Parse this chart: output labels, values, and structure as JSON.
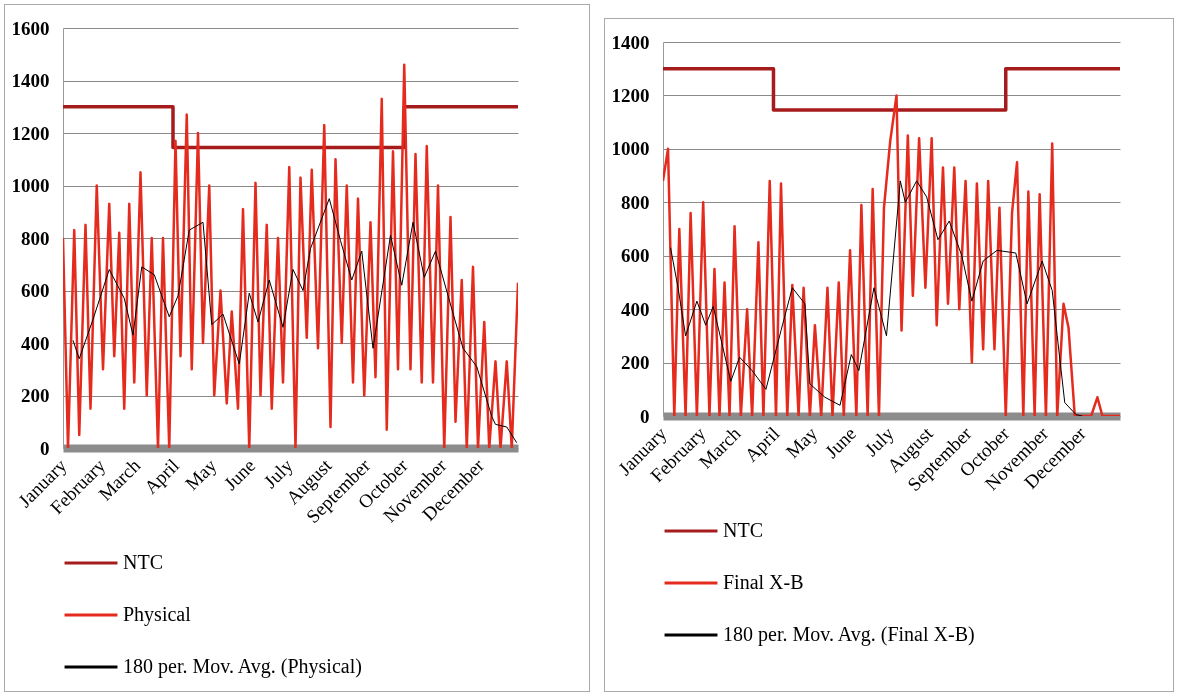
{
  "chart_data": [
    {
      "type": "line",
      "x": [
        "--01-01",
        "--01-05",
        "--01-10",
        "--01-14",
        "--01-19",
        "--01-23",
        "--01-28",
        "--02-02",
        "--02-07",
        "--02-11",
        "--02-15",
        "--02-19",
        "--02-23",
        "--02-27",
        "--03-04",
        "--03-09",
        "--03-13",
        "--03-18",
        "--03-22",
        "--03-27",
        "--04-01",
        "--04-05",
        "--04-10",
        "--04-14",
        "--04-19",
        "--04-23",
        "--04-28",
        "--05-02",
        "--05-07",
        "--05-12",
        "--05-16",
        "--05-21",
        "--05-25",
        "--05-30",
        "--06-04",
        "--06-08",
        "--06-13",
        "--06-17",
        "--06-22",
        "--06-26",
        "--07-01",
        "--07-06",
        "--07-10",
        "--07-15",
        "--07-19",
        "--07-24",
        "--07-29",
        "--08-03",
        "--08-07",
        "--08-12",
        "--08-16",
        "--08-21",
        "--08-25",
        "--08-30",
        "--09-04",
        "--09-08",
        "--09-13",
        "--09-17",
        "--09-22",
        "--09-26",
        "--10-01",
        "--10-06",
        "--10-10",
        "--10-15",
        "--10-19",
        "--10-24",
        "--10-28",
        "--11-02",
        "--11-07",
        "--11-11",
        "--11-16",
        "--11-20",
        "--11-25",
        "--11-29",
        "--12-04",
        "--12-08",
        "--12-13",
        "--12-17",
        "--12-22",
        "--12-26",
        "--12-31"
      ],
      "xlim": [
        "--01-01",
        "--12-31"
      ],
      "xticks": [
        {
          "value": "--01-01",
          "label": "January"
        },
        {
          "value": "--02-01",
          "label": "February"
        },
        {
          "value": "--03-01",
          "label": "March"
        },
        {
          "value": "--04-01",
          "label": "April"
        },
        {
          "value": "--05-01",
          "label": "May"
        },
        {
          "value": "--06-01",
          "label": "June"
        },
        {
          "value": "--07-01",
          "label": "July"
        },
        {
          "value": "--08-01",
          "label": "August"
        },
        {
          "value": "--09-01",
          "label": "September"
        },
        {
          "value": "--10-01",
          "label": "October"
        },
        {
          "value": "--11-01",
          "label": "November"
        },
        {
          "value": "--12-01",
          "label": "December"
        }
      ],
      "ylim": [
        0,
        1600
      ],
      "yticks": [
        0,
        200,
        400,
        600,
        800,
        1000,
        1200,
        1400,
        1600
      ],
      "grid": "y",
      "legend": "bottom",
      "marker": "none",
      "series": [
        {
          "name": "NTC",
          "type": "step",
          "color": "#a61c1c",
          "x": [
            "--01-01",
            "--03-30",
            "--10-01",
            "--12-31"
          ],
          "values": [
            1300,
            1145,
            1300,
            1300
          ]
        },
        {
          "name": "Physical",
          "color": "#e52b1e",
          "values": [
            800,
            0,
            830,
            50,
            850,
            150,
            1000,
            300,
            930,
            350,
            820,
            150,
            930,
            250,
            1050,
            200,
            800,
            0,
            800,
            0,
            1170,
            350,
            1270,
            300,
            1200,
            400,
            1000,
            200,
            600,
            170,
            520,
            150,
            910,
            0,
            1010,
            200,
            850,
            150,
            800,
            250,
            1070,
            0,
            1030,
            420,
            1060,
            380,
            1230,
            80,
            1100,
            400,
            1000,
            250,
            950,
            200,
            860,
            270,
            1330,
            70,
            1130,
            300,
            1460,
            300,
            1120,
            250,
            1150,
            250,
            1000,
            0,
            880,
            100,
            640,
            0,
            690,
            0,
            480,
            0,
            330,
            0,
            330,
            0,
            630
          ]
        },
        {
          "name": "180 per. Mov. Avg. (Physical)",
          "color": "#000000",
          "x": [
            "--01-09",
            "--01-14",
            "--01-25",
            "--02-07",
            "--02-19",
            "--02-26",
            "--03-05",
            "--03-15",
            "--03-27",
            "--04-03",
            "--04-12",
            "--04-23",
            "--04-30",
            "--05-09",
            "--05-22",
            "--05-30",
            "--06-06",
            "--06-15",
            "--06-26",
            "--07-04",
            "--07-12",
            "--07-18",
            "--08-02",
            "--08-11",
            "--08-20",
            "--08-28",
            "--09-06",
            "--09-20",
            "--09-29",
            "--10-08",
            "--10-17",
            "--10-26",
            "--11-08",
            "--11-17",
            "--11-28",
            "--12-10",
            "--12-13",
            "--12-22",
            "--12-30"
          ],
          "values": [
            410,
            340,
            490,
            680,
            570,
            430,
            690,
            660,
            500,
            580,
            830,
            860,
            470,
            510,
            320,
            590,
            480,
            640,
            460,
            680,
            600,
            760,
            950,
            790,
            640,
            750,
            380,
            810,
            620,
            860,
            650,
            750,
            530,
            380,
            310,
            120,
            90,
            80,
            20
          ]
        }
      ]
    },
    {
      "type": "line",
      "x": [
        "--01-01",
        "--01-05",
        "--01-10",
        "--01-14",
        "--01-19",
        "--01-23",
        "--01-28",
        "--02-02",
        "--02-07",
        "--02-11",
        "--02-15",
        "--02-19",
        "--02-23",
        "--02-27",
        "--03-04",
        "--03-09",
        "--03-13",
        "--03-18",
        "--03-22",
        "--03-27",
        "--04-01",
        "--04-05",
        "--04-10",
        "--04-14",
        "--04-19",
        "--04-23",
        "--04-28",
        "--05-02",
        "--05-07",
        "--05-12",
        "--05-16",
        "--05-21",
        "--05-25",
        "--05-30",
        "--06-04",
        "--06-08",
        "--06-13",
        "--06-17",
        "--06-22",
        "--06-26",
        "--07-01",
        "--07-06",
        "--07-10",
        "--07-15",
        "--07-19",
        "--07-24",
        "--07-29",
        "--08-03",
        "--08-07",
        "--08-12",
        "--08-16",
        "--08-21",
        "--08-25",
        "--08-30",
        "--09-04",
        "--09-08",
        "--09-13",
        "--09-17",
        "--09-22",
        "--09-26",
        "--10-01",
        "--10-06",
        "--10-10",
        "--10-15",
        "--10-19",
        "--10-24",
        "--10-28",
        "--11-02",
        "--11-07",
        "--11-11",
        "--11-16",
        "--11-20",
        "--11-25",
        "--11-29",
        "--12-04",
        "--12-08",
        "--12-13",
        "--12-17",
        "--12-22",
        "--12-26",
        "--12-31"
      ],
      "xlim": [
        "--01-01",
        "--12-31"
      ],
      "xticks": [
        {
          "value": "--01-01",
          "label": "January"
        },
        {
          "value": "--02-01",
          "label": "February"
        },
        {
          "value": "--03-01",
          "label": "March"
        },
        {
          "value": "--04-01",
          "label": "April"
        },
        {
          "value": "--05-01",
          "label": "May"
        },
        {
          "value": "--06-01",
          "label": "June"
        },
        {
          "value": "--07-01",
          "label": "July"
        },
        {
          "value": "--08-01",
          "label": "August"
        },
        {
          "value": "--09-01",
          "label": "September"
        },
        {
          "value": "--10-01",
          "label": "October"
        },
        {
          "value": "--11-01",
          "label": "November"
        },
        {
          "value": "--12-01",
          "label": "December"
        }
      ],
      "ylim": [
        0,
        1400
      ],
      "yticks": [
        0,
        200,
        400,
        600,
        800,
        1000,
        1200,
        1400
      ],
      "grid": "y",
      "legend": "bottom",
      "marker": "none",
      "series": [
        {
          "name": "NTC",
          "type": "step",
          "color": "#a61c1c",
          "x": [
            "--01-01",
            "--03-30",
            "--10-01",
            "--12-31"
          ],
          "values": [
            1300,
            1145,
            1300,
            1300
          ]
        },
        {
          "name": "Final X-B",
          "color": "#e52b1e",
          "values": [
            880,
            1000,
            0,
            700,
            0,
            760,
            0,
            800,
            0,
            550,
            0,
            500,
            0,
            710,
            0,
            400,
            0,
            650,
            0,
            880,
            0,
            870,
            0,
            490,
            0,
            480,
            0,
            340,
            0,
            480,
            0,
            500,
            0,
            620,
            0,
            790,
            0,
            850,
            0,
            780,
            1030,
            1200,
            320,
            1050,
            450,
            1040,
            480,
            1040,
            340,
            930,
            420,
            930,
            400,
            880,
            200,
            870,
            250,
            880,
            250,
            780,
            0,
            760,
            950,
            0,
            840,
            0,
            830,
            0,
            1020,
            0,
            420,
            330,
            0,
            0,
            0,
            0,
            70,
            0,
            0,
            0,
            0
          ]
        },
        {
          "name": "180 per. Mov. Avg. (Final X-B)",
          "color": "#000000",
          "x": [
            "--01-07",
            "--01-13",
            "--01-19",
            "--01-28",
            "--02-04",
            "--02-10",
            "--02-24",
            "--03-03",
            "--03-13",
            "--03-24",
            "--04-05",
            "--04-14",
            "--04-24",
            "--04-28",
            "--05-10",
            "--05-22",
            "--05-31",
            "--06-06",
            "--06-18",
            "--06-28",
            "--07-09",
            "--07-13",
            "--07-22",
            "--07-30",
            "--08-08",
            "--08-17",
            "--08-27",
            "--09-04",
            "--09-13",
            "--09-24",
            "--10-09",
            "--10-18",
            "--10-30",
            "--11-07",
            "--11-11",
            "--11-17",
            "--11-26",
            "--12-01"
          ],
          "values": [
            630,
            480,
            300,
            430,
            340,
            410,
            130,
            220,
            170,
            100,
            320,
            480,
            420,
            120,
            70,
            40,
            230,
            170,
            480,
            300,
            880,
            800,
            880,
            820,
            660,
            730,
            600,
            430,
            580,
            620,
            610,
            420,
            580,
            470,
            300,
            50,
            5,
            0
          ]
        }
      ]
    }
  ]
}
